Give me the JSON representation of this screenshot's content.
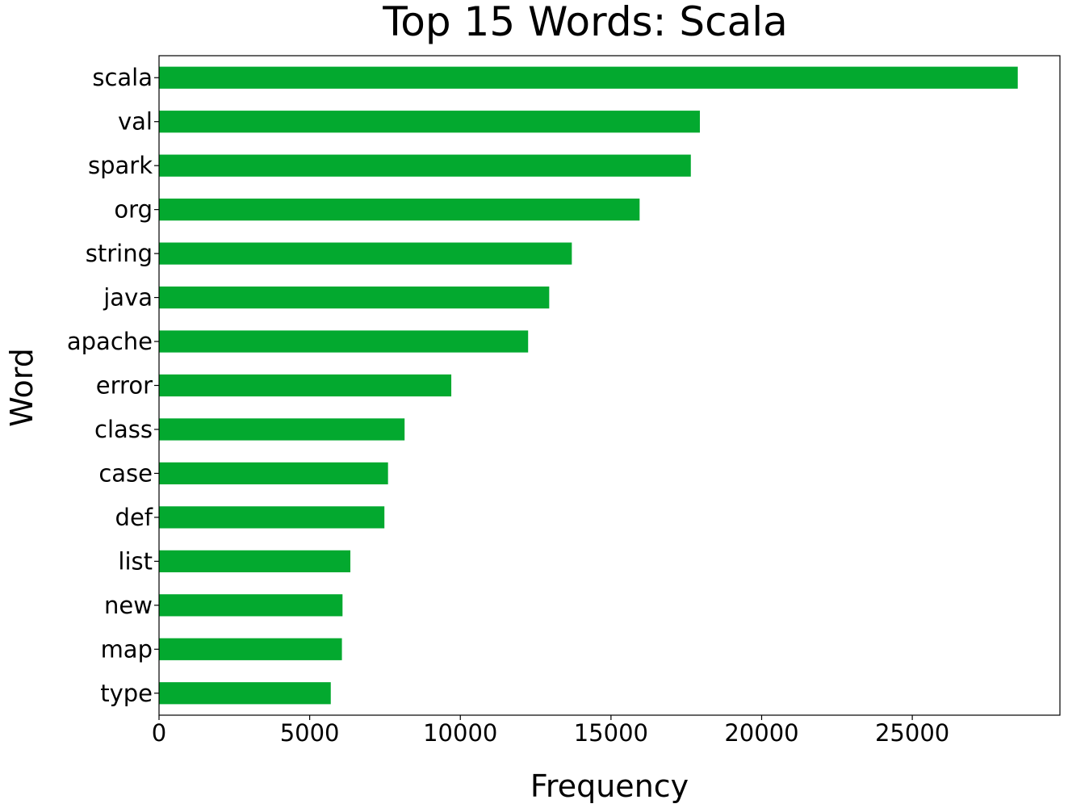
{
  "chart_data": {
    "type": "bar",
    "orientation": "horizontal",
    "title": "Top 15 Words: Scala",
    "xlabel": "Frequency",
    "ylabel": "Word",
    "xlim": [
      0,
      29900
    ],
    "xticks": [
      0,
      5000,
      10000,
      15000,
      20000,
      25000
    ],
    "grid": false,
    "bar_color": "#03a92f",
    "categories": [
      "scala",
      "val",
      "spark",
      "org",
      "string",
      "java",
      "apache",
      "error",
      "class",
      "case",
      "def",
      "list",
      "new",
      "map",
      "type"
    ],
    "values": [
      28500,
      17950,
      17650,
      15950,
      13700,
      12950,
      12250,
      9700,
      8150,
      7600,
      7480,
      6350,
      6090,
      6070,
      5700
    ]
  }
}
